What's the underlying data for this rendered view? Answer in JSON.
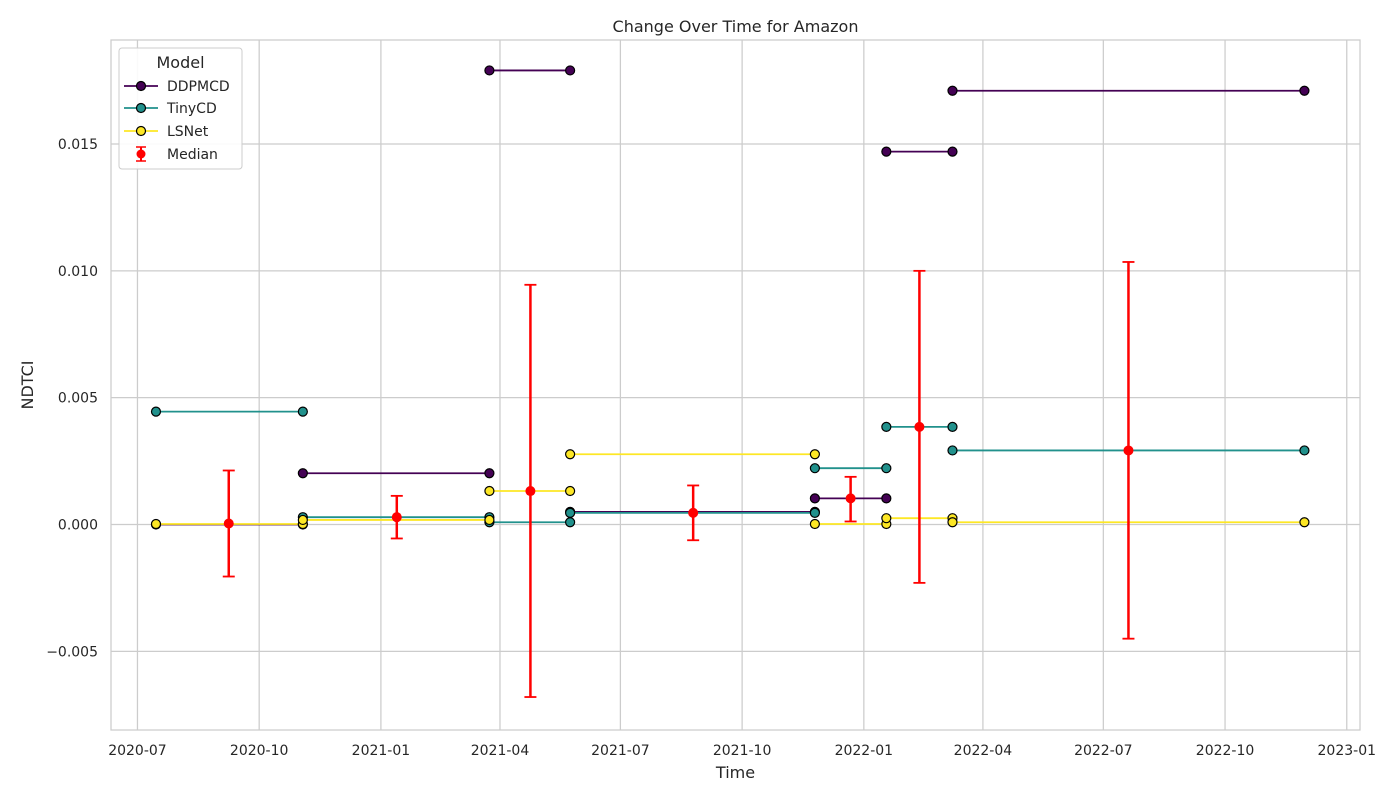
{
  "chart_data": {
    "type": "line",
    "title": "Change Over Time for Amazon",
    "xlabel": "Time",
    "ylabel": "NDTCI",
    "x_axis_type": "date",
    "xlim": [
      "2020-06-11",
      "2023-01-11"
    ],
    "ylim": [
      -0.0081,
      0.0191
    ],
    "x_ticks": [
      {
        "date": "2020-07-01",
        "label": "2020-07"
      },
      {
        "date": "2020-10-01",
        "label": "2020-10"
      },
      {
        "date": "2021-01-01",
        "label": "2021-01"
      },
      {
        "date": "2021-04-01",
        "label": "2021-04"
      },
      {
        "date": "2021-07-01",
        "label": "2021-07"
      },
      {
        "date": "2021-10-01",
        "label": "2021-10"
      },
      {
        "date": "2022-01-01",
        "label": "2022-01"
      },
      {
        "date": "2022-04-01",
        "label": "2022-04"
      },
      {
        "date": "2022-07-01",
        "label": "2022-07"
      },
      {
        "date": "2022-10-01",
        "label": "2022-10"
      },
      {
        "date": "2023-01-01",
        "label": "2023-01"
      }
    ],
    "y_ticks": [
      {
        "value": -0.005,
        "label": "−0.005"
      },
      {
        "value": 0.0,
        "label": "0.000"
      },
      {
        "value": 0.005,
        "label": "0.005"
      },
      {
        "value": 0.01,
        "label": "0.010"
      },
      {
        "value": 0.015,
        "label": "0.015"
      }
    ],
    "grid": true,
    "legend": {
      "title": "Model",
      "placement": "top-left"
    },
    "series": [
      {
        "name": "DDPMCD",
        "color": "#440154",
        "segments": [
          [
            [
              "2020-07-15",
              0.0
            ],
            [
              "2020-11-03",
              0.0
            ]
          ],
          [
            [
              "2020-11-03",
              0.00202
            ],
            [
              "2021-03-24",
              0.00202
            ]
          ],
          [
            [
              "2021-03-24",
              0.0179
            ],
            [
              "2021-05-24",
              0.0179
            ]
          ],
          [
            [
              "2021-05-24",
              0.0005
            ],
            [
              "2021-11-25",
              0.0005
            ]
          ],
          [
            [
              "2021-11-25",
              0.00103
            ],
            [
              "2022-01-18",
              0.00103
            ]
          ],
          [
            [
              "2022-01-18",
              0.0147
            ],
            [
              "2022-03-09",
              0.0147
            ]
          ],
          [
            [
              "2022-03-09",
              0.0171
            ],
            [
              "2022-11-30",
              0.0171
            ]
          ]
        ]
      },
      {
        "name": "TinyCD",
        "color": "#21918c",
        "segments": [
          [
            [
              "2020-07-15",
              0.00445
            ],
            [
              "2020-11-03",
              0.00445
            ]
          ],
          [
            [
              "2020-11-03",
              0.00029
            ],
            [
              "2021-03-24",
              0.00029
            ]
          ],
          [
            [
              "2021-03-24",
              9e-05
            ],
            [
              "2021-05-24",
              9e-05
            ]
          ],
          [
            [
              "2021-05-24",
              0.00046
            ],
            [
              "2021-11-25",
              0.00046
            ]
          ],
          [
            [
              "2021-11-25",
              0.00222
            ],
            [
              "2022-01-18",
              0.00222
            ]
          ],
          [
            [
              "2022-01-18",
              0.00385
            ],
            [
              "2022-03-09",
              0.00385
            ]
          ],
          [
            [
              "2022-03-09",
              0.00292
            ],
            [
              "2022-11-30",
              0.00292
            ]
          ]
        ]
      },
      {
        "name": "LSNet",
        "color": "#fde725",
        "segments": [
          [
            [
              "2020-07-15",
              2e-05
            ],
            [
              "2020-11-03",
              2e-05
            ]
          ],
          [
            [
              "2020-11-03",
              0.00018
            ],
            [
              "2021-03-24",
              0.00018
            ]
          ],
          [
            [
              "2021-03-24",
              0.00132
            ],
            [
              "2021-05-24",
              0.00132
            ]
          ],
          [
            [
              "2021-05-24",
              0.00277
            ],
            [
              "2021-11-25",
              0.00277
            ]
          ],
          [
            [
              "2021-11-25",
              2e-05
            ],
            [
              "2022-01-18",
              2e-05
            ]
          ],
          [
            [
              "2022-01-18",
              0.00025
            ],
            [
              "2022-03-09",
              0.00025
            ]
          ],
          [
            [
              "2022-03-09",
              9e-05
            ],
            [
              "2022-11-30",
              9e-05
            ]
          ]
        ]
      }
    ],
    "median": {
      "name": "Median",
      "color": "#ff0000",
      "points": [
        {
          "x": "2020-09-08",
          "y": 4e-05,
          "low": -0.00205,
          "high": 0.00213
        },
        {
          "x": "2021-01-13",
          "y": 0.00029,
          "low": -0.00055,
          "high": 0.00113
        },
        {
          "x": "2021-04-24",
          "y": 0.00132,
          "low": -0.0068,
          "high": 0.00945
        },
        {
          "x": "2021-08-25",
          "y": 0.00046,
          "low": -0.00062,
          "high": 0.00154
        },
        {
          "x": "2021-12-22",
          "y": 0.00103,
          "low": 0.00012,
          "high": 0.00188
        },
        {
          "x": "2022-02-12",
          "y": 0.00385,
          "low": -0.0023,
          "high": 0.01
        },
        {
          "x": "2022-07-20",
          "y": 0.00292,
          "low": -0.0045,
          "high": 0.01035
        }
      ]
    }
  }
}
